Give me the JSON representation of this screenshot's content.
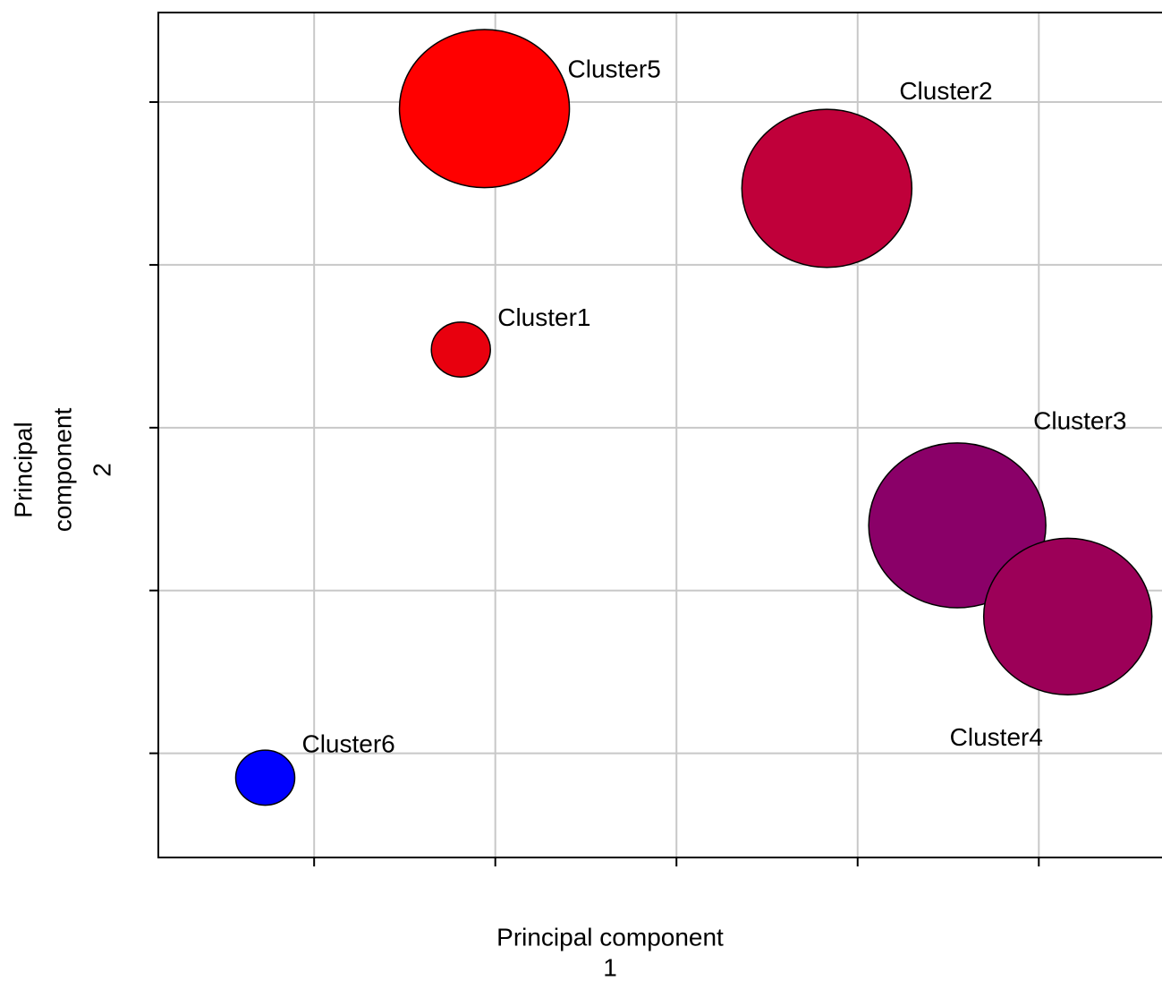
{
  "chart_data": {
    "type": "bubble",
    "x_label": [
      "Principal component",
      "1"
    ],
    "y_label": [
      "Principal",
      "component",
      "2"
    ],
    "xlim": [
      0.14,
      5.68
    ],
    "ylim": [
      0.36,
      5.55
    ],
    "xticks": [
      1,
      2,
      3,
      4,
      5
    ],
    "yticks": [
      1,
      2,
      3,
      4,
      5
    ],
    "grid": true,
    "series": [
      {
        "name": "Cluster5",
        "color": "#ff0000",
        "x": [
          1.94
        ],
        "values": [
          4.96
        ],
        "sizes": [
          95
        ]
      },
      {
        "name": "Cluster2",
        "color": "#c0003a",
        "x": [
          3.83
        ],
        "values": [
          4.47
        ],
        "sizes": [
          95
        ]
      },
      {
        "name": "Cluster1",
        "color": "#e8000e",
        "x": [
          1.81
        ],
        "values": [
          3.48
        ],
        "sizes": [
          33
        ]
      },
      {
        "name": "Cluster3",
        "color": "#8a0068",
        "x": [
          4.55
        ],
        "values": [
          2.4
        ],
        "sizes": [
          99
        ]
      },
      {
        "name": "Cluster4",
        "color": "#9c0058",
        "x": [
          5.16
        ],
        "values": [
          1.84
        ],
        "sizes": [
          94
        ]
      },
      {
        "name": "Cluster6",
        "color": "#0000ff",
        "x": [
          0.73
        ],
        "values": [
          0.85
        ],
        "sizes": [
          33
        ]
      }
    ]
  }
}
